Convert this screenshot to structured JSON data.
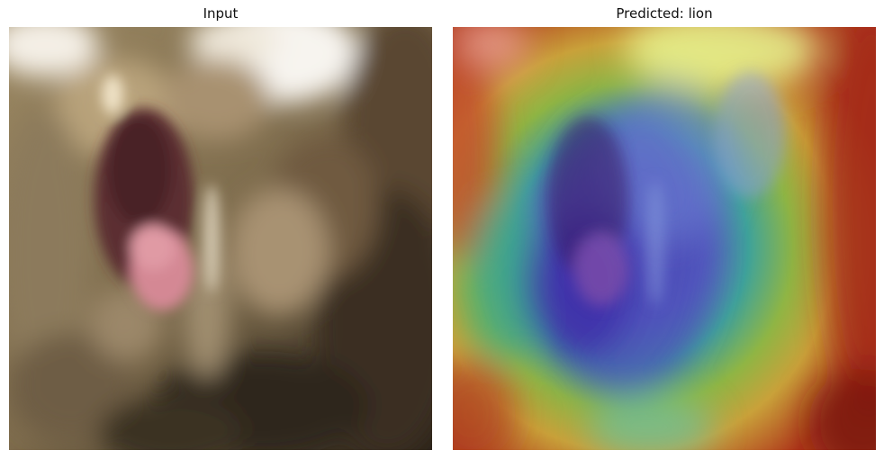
{
  "panels": {
    "left": {
      "title": "Input"
    },
    "right": {
      "title": "Predicted: lion"
    }
  },
  "colors": {
    "background": "#ffffff",
    "fur_base": "#8a7656",
    "mouth": "#6e3c3e",
    "tongue": "#d98996",
    "heat_low": "#4b3fae",
    "heat_mid": "#3fae8a",
    "heat_high": "#c83e1e"
  }
}
